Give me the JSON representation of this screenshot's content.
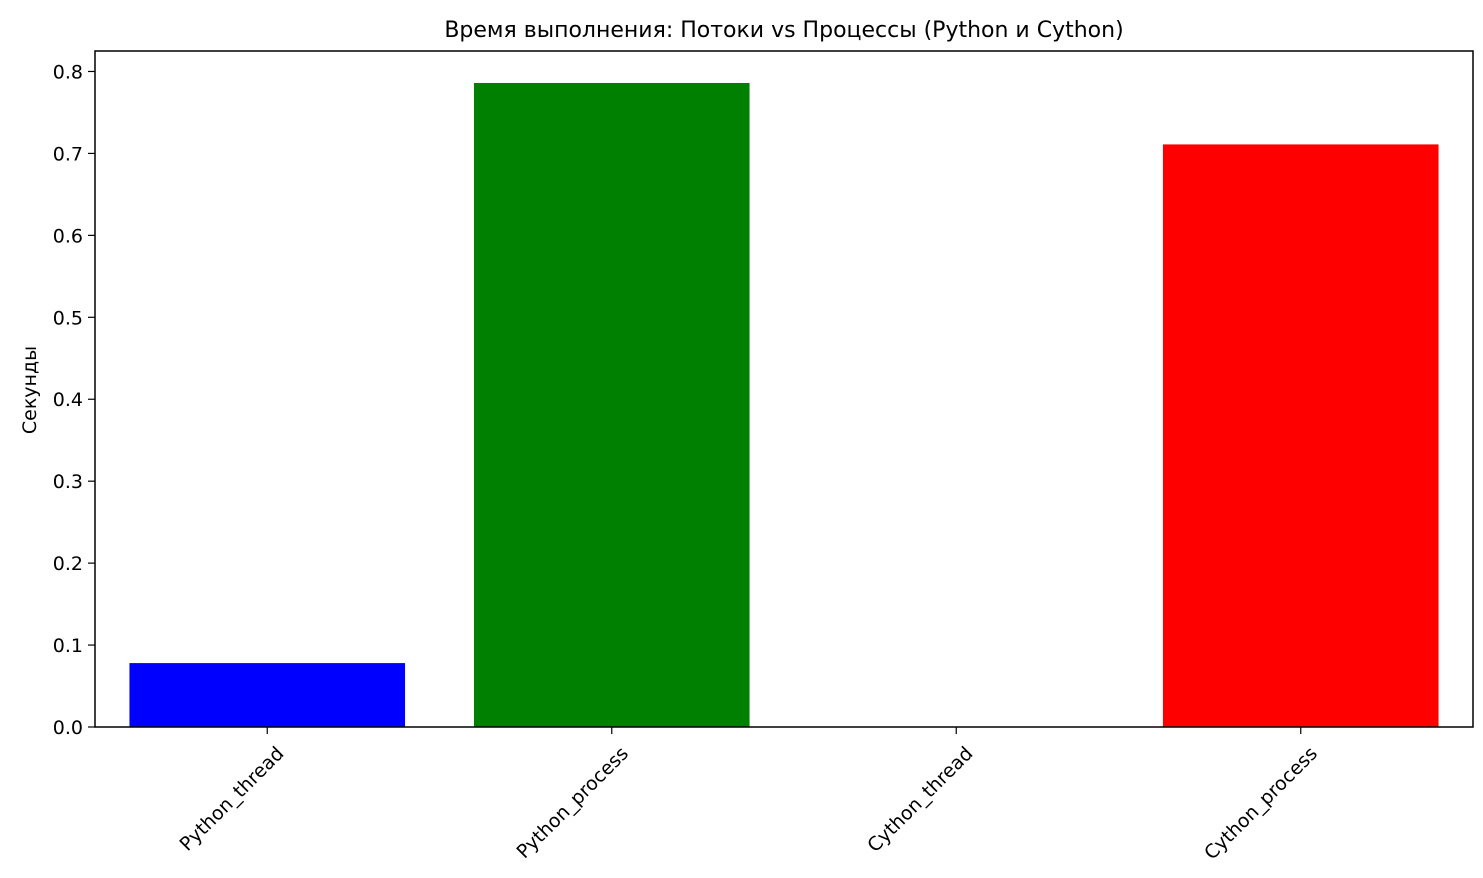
{
  "chart_data": {
    "type": "bar",
    "title": "Время выполнения: Потоки vs Процессы (Python и Cython)",
    "xlabel": "",
    "ylabel": "Секунды",
    "categories": [
      "Python_thread",
      "Python_process",
      "Cython_thread",
      "Cython_process"
    ],
    "values": [
      0.078,
      0.786,
      0.0005,
      0.711
    ],
    "colors": [
      "#0000ff",
      "#008000",
      "#00ffff",
      "#ff0000"
    ],
    "ylim": [
      0,
      0.825
    ],
    "yticks": [
      0.0,
      0.1,
      0.2,
      0.3,
      0.4,
      0.5,
      0.6,
      0.7,
      0.8
    ],
    "ytick_labels": [
      "0.0",
      "0.1",
      "0.2",
      "0.3",
      "0.4",
      "0.5",
      "0.6",
      "0.7",
      "0.8"
    ],
    "grid": false,
    "legend": "none"
  }
}
